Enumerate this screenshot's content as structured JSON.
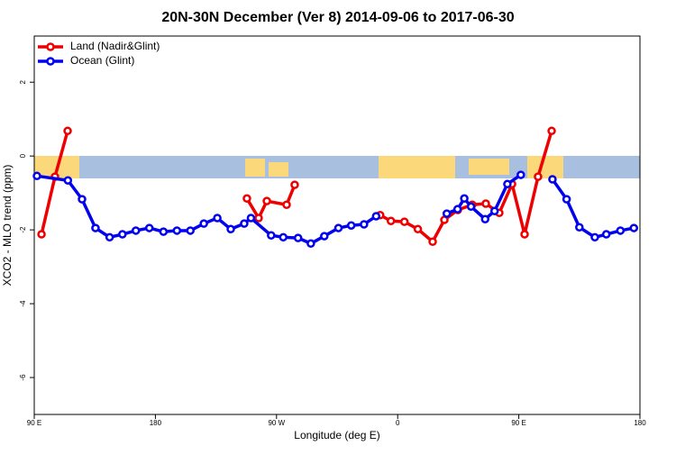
{
  "chart_data": {
    "type": "line",
    "title": "20N-30N December (Ver 8)   2014-09-06 to 2017-06-30",
    "x_label": "Longitude (deg E)",
    "y_label": "XCO2 - MLO trend (ppm)",
    "xlim": [
      90,
      540
    ],
    "xticks": [
      {
        "value": 90,
        "label": "90 E"
      },
      {
        "value": 180,
        "label": "180"
      },
      {
        "value": 270,
        "label": "90 W"
      },
      {
        "value": 360,
        "label": "0"
      },
      {
        "value": 450,
        "label": "90 E"
      },
      {
        "value": 540,
        "label": "180"
      }
    ],
    "ylim": [
      -7,
      3.25
    ],
    "yticks": [
      -6,
      -4,
      -2,
      0,
      2
    ],
    "legend": "top-left",
    "series": [
      {
        "name": "Land (Nadir&Glint)",
        "color": "#ee0000",
        "x": [
          95.4,
          105.4,
          114.8,
          180,
          248,
          256.7,
          262.8,
          277.5,
          283.5,
          310,
          347,
          355,
          365,
          375,
          386,
          394.7,
          404.7,
          415.4,
          425.5,
          435.5,
          445,
          454.3,
          464.3,
          474.4
        ],
        "values": [
          -2.12,
          -0.56,
          0.68,
          null,
          -1.15,
          -1.68,
          -1.22,
          -1.32,
          -0.78,
          null,
          -1.6,
          -1.76,
          -1.78,
          -1.98,
          -2.32,
          -1.73,
          -1.46,
          -1.32,
          -1.29,
          -1.54,
          -0.76,
          -2.12,
          -0.56,
          0.68
        ]
      },
      {
        "name": "Ocean (Glint)",
        "color": "#0000ee",
        "x": [
          92,
          115,
          125.5,
          135.5,
          146,
          155.5,
          165.5,
          175.5,
          186,
          196,
          206,
          216,
          226,
          236,
          246,
          251,
          266,
          275,
          286,
          295.5,
          305.5,
          316,
          325.5,
          335,
          344,
          370,
          396.5,
          404.5,
          409.5,
          414.5,
          425,
          432,
          441.5,
          451.5,
          463,
          475,
          485.5,
          495,
          506.5,
          515,
          525.5,
          535.5
        ],
        "values": [
          -0.54,
          -0.66,
          -1.17,
          -1.95,
          -2.2,
          -2.12,
          -2.02,
          -1.95,
          -2.05,
          -2.02,
          -2.02,
          -1.83,
          -1.68,
          -1.98,
          -1.83,
          -1.68,
          -2.15,
          -2.2,
          -2.22,
          -2.37,
          -2.17,
          -1.95,
          -1.88,
          -1.85,
          -1.63,
          null,
          -1.56,
          -1.44,
          -1.15,
          -1.37,
          -1.71,
          -1.49,
          -0.76,
          -0.51,
          null,
          -0.63,
          -1.17,
          -1.93,
          -2.2,
          -2.12,
          -2.02,
          -1.95
        ]
      }
    ]
  }
}
